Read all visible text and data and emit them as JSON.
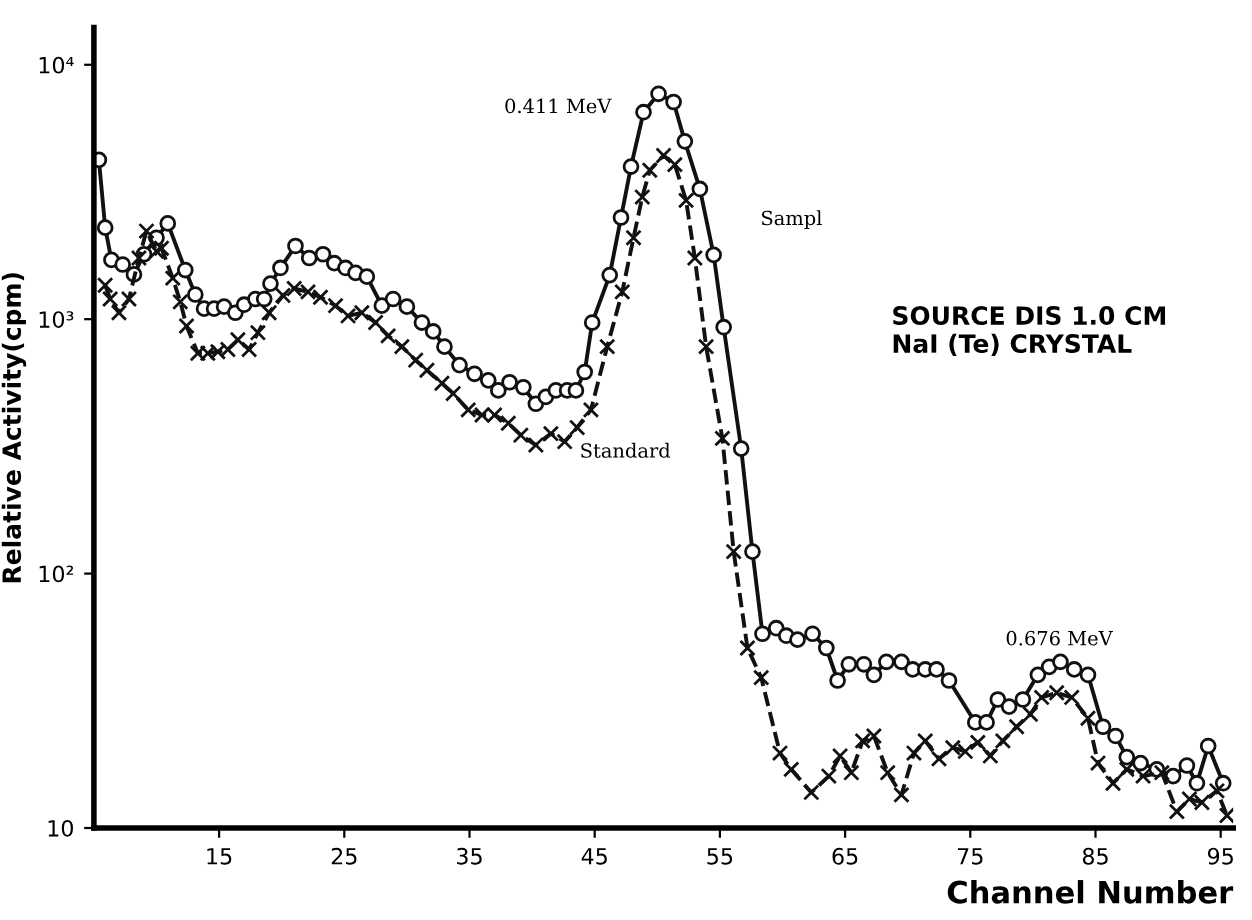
{
  "chart_data": {
    "type": "line",
    "xlabel": "Channel Number",
    "ylabel": "Relative Activity(cpm)",
    "log": "y",
    "grid": false,
    "legend": false,
    "xlim": [
      5,
      96
    ],
    "ylim": [
      10,
      14000
    ],
    "xticks": [
      15,
      25,
      35,
      45,
      55,
      65,
      75,
      85,
      95
    ],
    "yticks": [
      {
        "value": 10,
        "label": "10"
      },
      {
        "value": 100,
        "label": "10²"
      },
      {
        "value": 1000,
        "label": "10³"
      },
      {
        "value": 10000,
        "label": "10⁴"
      }
    ],
    "series": [
      {
        "color": "#111111",
        "marker": "circle",
        "line_style": "solid",
        "x": [
          5.4,
          5.9,
          6.4,
          7.3,
          8.2,
          9,
          10,
          10.9,
          12.3,
          13.1,
          13.8,
          14.6,
          15.4,
          16.3,
          17,
          17.9,
          18.6,
          19.1,
          19.9,
          21.1,
          22.2,
          23.3,
          24.2,
          25.1,
          25.9,
          26.8,
          28,
          28.9,
          30,
          31.2,
          32.1,
          33,
          34.2,
          35.4,
          36.5,
          37.3,
          38.2,
          39.3,
          40.3,
          41.1,
          41.9,
          42.8,
          43.5,
          44.2,
          44.8,
          46.2,
          47.1,
          47.9,
          48.9,
          50.1,
          51.3,
          52.2,
          53.4,
          54.5,
          55.3,
          56.7,
          57.6,
          58.4,
          59.5,
          60.3,
          61.2,
          62.4,
          63.5,
          64.4,
          65.3,
          66.5,
          67.3,
          68.3,
          69.5,
          70.4,
          71.4,
          72.3,
          73.3,
          75.4,
          76.3,
          77.2,
          78.1,
          79.2,
          80.4,
          81.3,
          82.2,
          83.3,
          84.4,
          85.6,
          86.6,
          87.5,
          88.6,
          89.9,
          91.2,
          92.3,
          93.1,
          94,
          95.2
        ],
        "values": [
          4230,
          2290,
          1710,
          1640,
          1500,
          1800,
          2090,
          2380,
          1560,
          1250,
          1100,
          1100,
          1120,
          1060,
          1140,
          1200,
          1200,
          1380,
          1590,
          1940,
          1740,
          1800,
          1660,
          1590,
          1520,
          1470,
          1130,
          1200,
          1120,
          970,
          895,
          780,
          660,
          610,
          575,
          525,
          565,
          540,
          465,
          495,
          525,
          525,
          525,
          620,
          970,
          1490,
          2510,
          3980,
          6510,
          7690,
          7140,
          5000,
          3250,
          1790,
          930,
          310,
          122,
          58,
          61,
          57,
          55,
          58,
          51,
          38,
          44,
          44,
          40,
          45,
          45,
          42,
          42,
          42,
          38,
          26,
          26,
          32,
          30,
          32,
          40,
          43,
          45,
          42,
          40,
          25,
          23,
          19,
          18,
          17,
          16,
          17.6,
          15,
          21,
          15
        ]
      },
      {
        "color": "#111111",
        "marker": "cross",
        "line_style": "dashed",
        "x": [
          5.9,
          6.3,
          7,
          7.8,
          8.6,
          9.2,
          10,
          10.4,
          11.3,
          11.9,
          12.4,
          13.3,
          14.1,
          14.9,
          15.7,
          16.5,
          17.4,
          18.1,
          19,
          20.1,
          21,
          22.1,
          23.1,
          24.3,
          25.3,
          26.4,
          27.5,
          28.5,
          29.6,
          30.7,
          31.6,
          32.8,
          33.7,
          34.9,
          36,
          37,
          38.1,
          39.1,
          40.3,
          41.5,
          42.6,
          43.6,
          44.7,
          46,
          47.2,
          48.1,
          48.8,
          49.4,
          50.5,
          51.4,
          52.3,
          53,
          53.9,
          55.2,
          56.1,
          57.2,
          58.3,
          59.8,
          60.7,
          62.3,
          63.7,
          64.6,
          65.5,
          66.4,
          67.3,
          68.4,
          69.5,
          70.5,
          71.4,
          72.5,
          73.6,
          74.6,
          75.6,
          76.6,
          77.6,
          78.7,
          79.8,
          80.7,
          81.9,
          83.1,
          84.4,
          85.2,
          86.4,
          87.5,
          88.8,
          90.3,
          91.5,
          92.5,
          93.5,
          94.7,
          95.5
        ],
        "values": [
          1360,
          1200,
          1060,
          1200,
          1740,
          2220,
          1850,
          1900,
          1450,
          1170,
          940,
          735,
          735,
          745,
          760,
          830,
          760,
          885,
          1060,
          1240,
          1320,
          1280,
          1220,
          1130,
          1030,
          1060,
          970,
          860,
          780,
          690,
          630,
          560,
          510,
          440,
          420,
          420,
          390,
          350,
          320,
          355,
          330,
          375,
          440,
          780,
          1280,
          2090,
          3020,
          3850,
          4400,
          4050,
          2930,
          1740,
          780,
          340,
          122,
          51,
          39,
          19.7,
          17,
          13.8,
          16,
          19.2,
          16.5,
          22,
          23,
          16.5,
          13.5,
          19.7,
          22,
          18.7,
          20.7,
          20,
          21.7,
          19.2,
          22,
          25,
          28,
          32.6,
          34,
          32.6,
          27,
          18,
          15,
          17,
          16,
          16.5,
          11.6,
          13,
          12.6,
          14,
          11.2
        ]
      }
    ],
    "annotations": [
      "0.411 MeV",
      "Sampl",
      {
        "text": "Standard",
        "x": 43.8,
        "y": 300
      },
      "0.676 MeV",
      "SOURCE DIS 1.0 CM\nNaI (Te) CRYSTAL"
    ]
  }
}
